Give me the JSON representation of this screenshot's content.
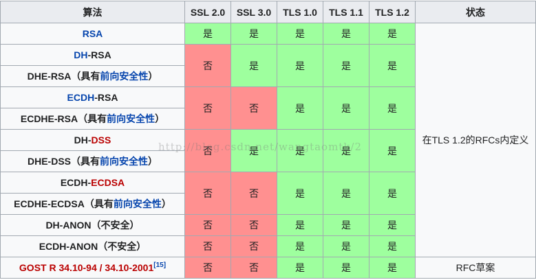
{
  "headers": {
    "algorithm": "算法",
    "ssl20": "SSL 2.0",
    "ssl30": "SSL 3.0",
    "tls10": "TLS 1.0",
    "tls11": "TLS 1.1",
    "tls12": "TLS 1.2",
    "status": "状态"
  },
  "values": {
    "yes": "是",
    "no": "否"
  },
  "rows": {
    "rsa": {
      "name": "RSA"
    },
    "dh_rsa": {
      "a": "DH",
      "b": "-RSA"
    },
    "dhe_rsa": {
      "a": "DHE-RSA（具有",
      "b": "前向安全性",
      "c": "）"
    },
    "ecdh_rsa": {
      "a": "ECDH",
      "b": "-RSA"
    },
    "ecdhe_rsa": {
      "a": "ECDHE-RSA（具有",
      "b": "前向安全性",
      "c": "）"
    },
    "dh_dss": {
      "a": "DH-",
      "b": "DSS"
    },
    "dhe_dss": {
      "a": "DHE-DSS（具有",
      "b": "前向安全性",
      "c": "）"
    },
    "ecdh_ecdsa": {
      "a": "ECDH-",
      "b": "ECDSA"
    },
    "ecdhe_ecdsa": {
      "a": "ECDHE-ECDSA（具有",
      "b": "前向安全性",
      "c": "）"
    },
    "dh_anon": {
      "name": "DH-ANON（不安全）"
    },
    "ecdh_anon": {
      "name": "ECDH-ANON（不安全）"
    },
    "gost": {
      "name": "GOST R 34.10-94 / 34.10-2001",
      "ref": "[15]"
    }
  },
  "status": {
    "defined": "在TLS 1.2的RFCs内定义",
    "draft": "RFC草案"
  },
  "watermark": "http://blog.csdn.net/wangtaomtk/2",
  "colors": {
    "yes": "#9eff9e",
    "no": "#ff9090",
    "header": "#eaecf0",
    "link": "#0645ad",
    "redlink": "#ba0000"
  }
}
